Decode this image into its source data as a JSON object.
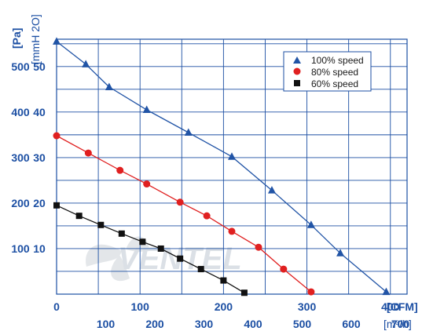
{
  "chart_data": {
    "type": "line",
    "y_axis_left_label": "[Pa]",
    "y_axis_right_label": "[mmH 2O]",
    "x_axis_top_unit": "[CFM]",
    "x_axis_bottom_unit": "[m³/h]",
    "pa_ticks": [
      "100",
      "200",
      "300",
      "400",
      "500"
    ],
    "mmh2o_ticks": [
      "10",
      "20",
      "30",
      "40",
      "50"
    ],
    "cfm_ticks": [
      "0",
      "100",
      "200",
      "300",
      "400"
    ],
    "m3h_ticks": [
      "100",
      "200",
      "300",
      "400",
      "500",
      "600",
      "700"
    ],
    "xlim_cfm": [
      0,
      420
    ],
    "ylim_pa": [
      0,
      560
    ],
    "grid": true,
    "legend_position": "top-right",
    "watermark": "VENTEL",
    "series": [
      {
        "name": "100% speed",
        "color": "#2154a6",
        "marker": "triangle",
        "x": [
          0,
          35,
          63,
          108,
          158,
          210,
          258,
          305,
          340,
          395
        ],
        "y": [
          555,
          505,
          455,
          405,
          355,
          302,
          228,
          152,
          90,
          5
        ]
      },
      {
        "name": "80% speed",
        "color": "#e02020",
        "marker": "circle",
        "x": [
          0,
          38,
          76,
          108,
          148,
          180,
          210,
          242,
          272,
          305
        ],
        "y": [
          348,
          310,
          272,
          242,
          202,
          172,
          138,
          103,
          55,
          5
        ]
      },
      {
        "name": "60% speed",
        "color": "#111111",
        "marker": "square",
        "x": [
          0,
          27,
          53,
          78,
          103,
          125,
          148,
          173,
          200,
          225
        ],
        "y": [
          195,
          172,
          152,
          133,
          115,
          100,
          78,
          55,
          30,
          3
        ]
      }
    ]
  }
}
